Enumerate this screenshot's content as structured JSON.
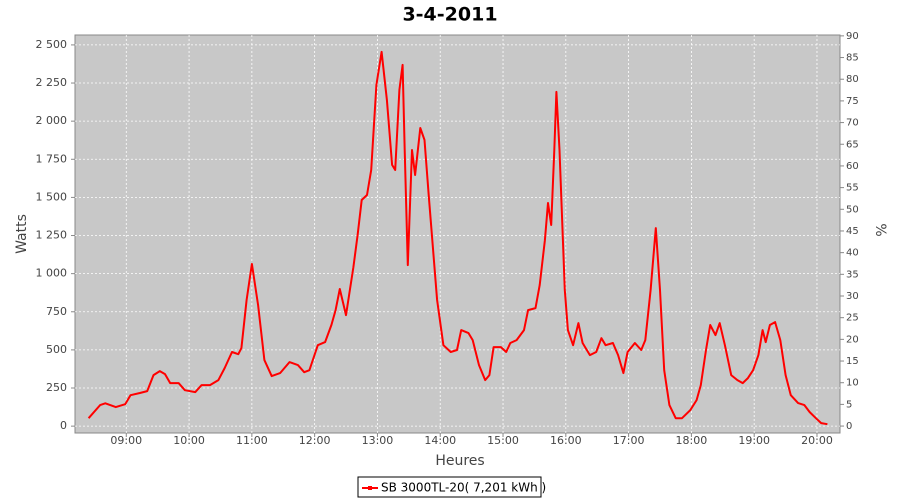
{
  "chart_data": {
    "type": "line",
    "title": "3-4-2011",
    "x_label": "Heures",
    "y_label": "Watts",
    "y2_label": "%",
    "xlim": [
      "08:11",
      "20:22"
    ],
    "xticks": [
      "09:00",
      "10:00",
      "11:00",
      "12:00",
      "13:00",
      "14:00",
      "15:00",
      "16:00",
      "17:00",
      "18:00",
      "19:00",
      "20:00"
    ],
    "ylim": [
      -45,
      2565
    ],
    "yticks": [
      0,
      250,
      500,
      750,
      {
        "value": 1000,
        "label": "1 000"
      },
      {
        "value": 1250,
        "label": "1 250"
      },
      {
        "value": 1500,
        "label": "1 500"
      },
      {
        "value": 1750,
        "label": "1 750"
      },
      {
        "value": 2000,
        "label": "2 000"
      },
      {
        "value": 2250,
        "label": "2 250"
      },
      {
        "value": 2500,
        "label": "2 500"
      }
    ],
    "y2lim": [
      -1.6,
      90.2
    ],
    "y2ticks": [
      0,
      5,
      10,
      15,
      20,
      25,
      30,
      35,
      40,
      45,
      50,
      55,
      60,
      65,
      70,
      75,
      80,
      85,
      90
    ],
    "grid": true,
    "legend": "bottom",
    "x": [
      "08:24",
      "08:35",
      "08:40",
      "08:50",
      "08:59",
      "09:04",
      "09:13",
      "09:20",
      "09:26",
      "09:32",
      "09:37",
      "09:42",
      "09:50",
      "09:56",
      "10:06",
      "10:12",
      "10:20",
      "10:28",
      "10:34",
      "10:41",
      "10:47",
      "10:50",
      "10:55",
      "11:00",
      "11:06",
      "11:12",
      "11:19",
      "11:27",
      "11:36",
      "11:44",
      "11:50",
      "11:55",
      "12:03",
      "12:10",
      "12:16",
      "12:20",
      "12:24",
      "12:30",
      "12:37",
      "12:41",
      "12:45",
      "12:50",
      "12:54",
      "12:59",
      "13:04",
      "13:09",
      "13:14",
      "13:17",
      "13:21",
      "13:24",
      "13:26",
      "13:29",
      "13:33",
      "13:36",
      "13:41",
      "13:45",
      "13:49",
      "13:57",
      "14:03",
      "14:10",
      "14:16",
      "14:20",
      "14:27",
      "14:31",
      "14:37",
      "14:43",
      "14:47",
      "14:51",
      "14:58",
      "15:03",
      "15:07",
      "15:13",
      "15:20",
      "15:24",
      "15:31",
      "15:35",
      "15:40",
      "15:43",
      "15:46",
      "15:49",
      "15:51",
      "15:54",
      "15:59",
      "16:02",
      "16:07",
      "16:12",
      "16:16",
      "16:23",
      "16:29",
      "16:34",
      "16:38",
      "16:45",
      "16:50",
      "16:55",
      "16:59",
      "17:06",
      "17:12",
      "17:16",
      "17:21",
      "17:26",
      "17:30",
      "17:34",
      "17:39",
      "17:45",
      "17:51",
      "17:59",
      "18:05",
      "18:09",
      "18:14",
      "18:18",
      "18:23",
      "18:27",
      "18:32",
      "18:38",
      "18:44",
      "18:49",
      "18:54",
      "18:59",
      "19:04",
      "19:08",
      "19:11",
      "19:15",
      "19:20",
      "19:25",
      "19:30",
      "19:35",
      "19:42",
      "19:48",
      "19:53",
      "19:59",
      "20:04",
      "20:10"
    ],
    "series": [
      {
        "name": "SB 3000TL-20( 7,201 kWh )",
        "color": "#ff0000",
        "values": [
          52,
          138,
          150,
          125,
          144,
          203,
          217,
          230,
          335,
          361,
          341,
          282,
          282,
          236,
          223,
          269,
          269,
          302,
          381,
          486,
          472,
          512,
          827,
          1063,
          794,
          433,
          328,
          348,
          420,
          400,
          354,
          367,
          531,
          551,
          663,
          761,
          899,
          728,
          1043,
          1253,
          1483,
          1516,
          1680,
          2238,
          2454,
          2139,
          1713,
          1680,
          2205,
          2369,
          1811,
          1056,
          1811,
          1647,
          1955,
          1877,
          1516,
          827,
          531,
          486,
          499,
          630,
          610,
          564,
          400,
          302,
          335,
          518,
          518,
          486,
          545,
          564,
          630,
          761,
          774,
          925,
          1220,
          1463,
          1319,
          1811,
          2192,
          1811,
          892,
          630,
          531,
          676,
          545,
          466,
          486,
          577,
          531,
          545,
          466,
          348,
          486,
          545,
          499,
          564,
          892,
          1299,
          892,
          367,
          138,
          52,
          52,
          105,
          171,
          269,
          499,
          663,
          597,
          676,
          531,
          335,
          302,
          282,
          315,
          367,
          466,
          630,
          551,
          663,
          682,
          564,
          335,
          203,
          151,
          138,
          92,
          52,
          20,
          13
        ]
      }
    ]
  }
}
